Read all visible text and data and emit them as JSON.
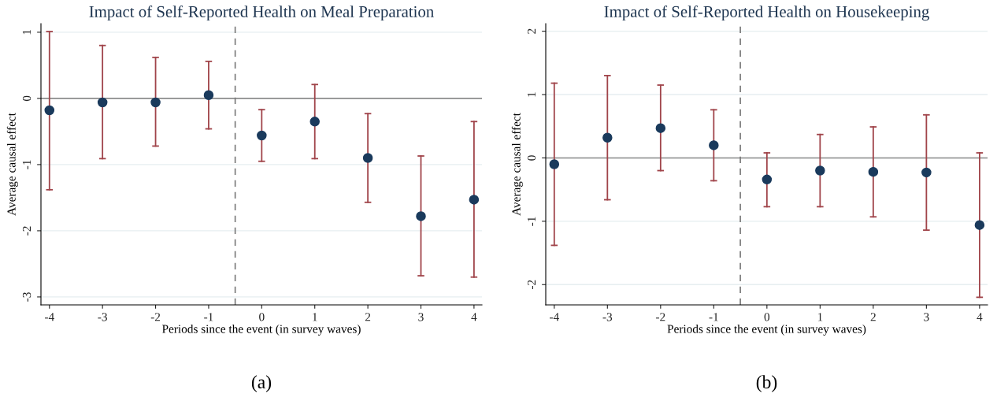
{
  "chart_data": [
    {
      "type": "scatter",
      "title": "Impact of Self-Reported Health on Meal Preparation",
      "xlabel": "Periods since the event (in survey waves)",
      "ylabel": "Average causal effect",
      "x": [
        -4,
        -3,
        -2,
        -1,
        0,
        1,
        2,
        3,
        4
      ],
      "series": [
        {
          "color": "#1a3a5c",
          "values": [
            -0.18,
            -0.06,
            -0.06,
            0.05,
            -0.56,
            -0.35,
            -0.9,
            -1.78,
            -1.53
          ],
          "errors": [
            [
              1.01,
              -1.38
            ],
            [
              0.8,
              -0.91
            ],
            [
              0.62,
              -0.72
            ],
            [
              0.56,
              -0.46
            ],
            [
              -0.17,
              -0.95
            ],
            [
              0.21,
              -0.91
            ],
            [
              -0.23,
              -1.57
            ],
            [
              -0.87,
              -2.68
            ],
            [
              -0.35,
              -2.7
            ]
          ]
        }
      ],
      "xlim": [
        -4.16,
        4.15
      ],
      "ylim": [
        -3.12,
        1.13
      ],
      "xticks": [
        -4,
        -3,
        -2,
        -1,
        0,
        1,
        2,
        3,
        4
      ],
      "yticks": [
        -3,
        -2,
        -1,
        0,
        1
      ],
      "grid": "y",
      "marker": "circle",
      "ref_lines": [
        {
          "axis": "y",
          "value": 0,
          "color": "#8c8c8c",
          "line_style": "solid"
        },
        {
          "axis": "x",
          "value": -0.5,
          "color": "#7a7a7a",
          "line_style": "dashed"
        }
      ],
      "annotations": [
        "(a)"
      ]
    },
    {
      "type": "scatter",
      "title": "Impact of Self-Reported Health on Housekeeping",
      "xlabel": "Periods since the event (in survey waves)",
      "ylabel": "Average causal effect",
      "x": [
        -4,
        -3,
        -2,
        -1,
        0,
        1,
        2,
        3,
        4
      ],
      "series": [
        {
          "color": "#1a3a5c",
          "values": [
            -0.1,
            0.32,
            0.47,
            0.2,
            -0.34,
            -0.2,
            -0.22,
            -0.23,
            -1.06
          ],
          "errors": [
            [
              1.18,
              -1.38
            ],
            [
              1.3,
              -0.66
            ],
            [
              1.15,
              -0.2
            ],
            [
              0.76,
              -0.36
            ],
            [
              0.08,
              -0.77
            ],
            [
              0.37,
              -0.77
            ],
            [
              0.49,
              -0.93
            ],
            [
              0.68,
              -1.14
            ],
            [
              0.08,
              -2.2
            ]
          ]
        }
      ],
      "xlim": [
        -4.16,
        4.15
      ],
      "ylim": [
        -2.32,
        2.12
      ],
      "xticks": [
        -4,
        -3,
        -2,
        -1,
        0,
        1,
        2,
        3,
        4
      ],
      "yticks": [
        -2,
        -1,
        0,
        1,
        2
      ],
      "grid": "y",
      "marker": "circle",
      "ref_lines": [
        {
          "axis": "y",
          "value": 0,
          "color": "#8c8c8c",
          "line_style": "solid"
        },
        {
          "axis": "x",
          "value": -0.5,
          "color": "#7a7a7a",
          "line_style": "dashed"
        }
      ],
      "annotations": [
        "(b)"
      ]
    }
  ]
}
